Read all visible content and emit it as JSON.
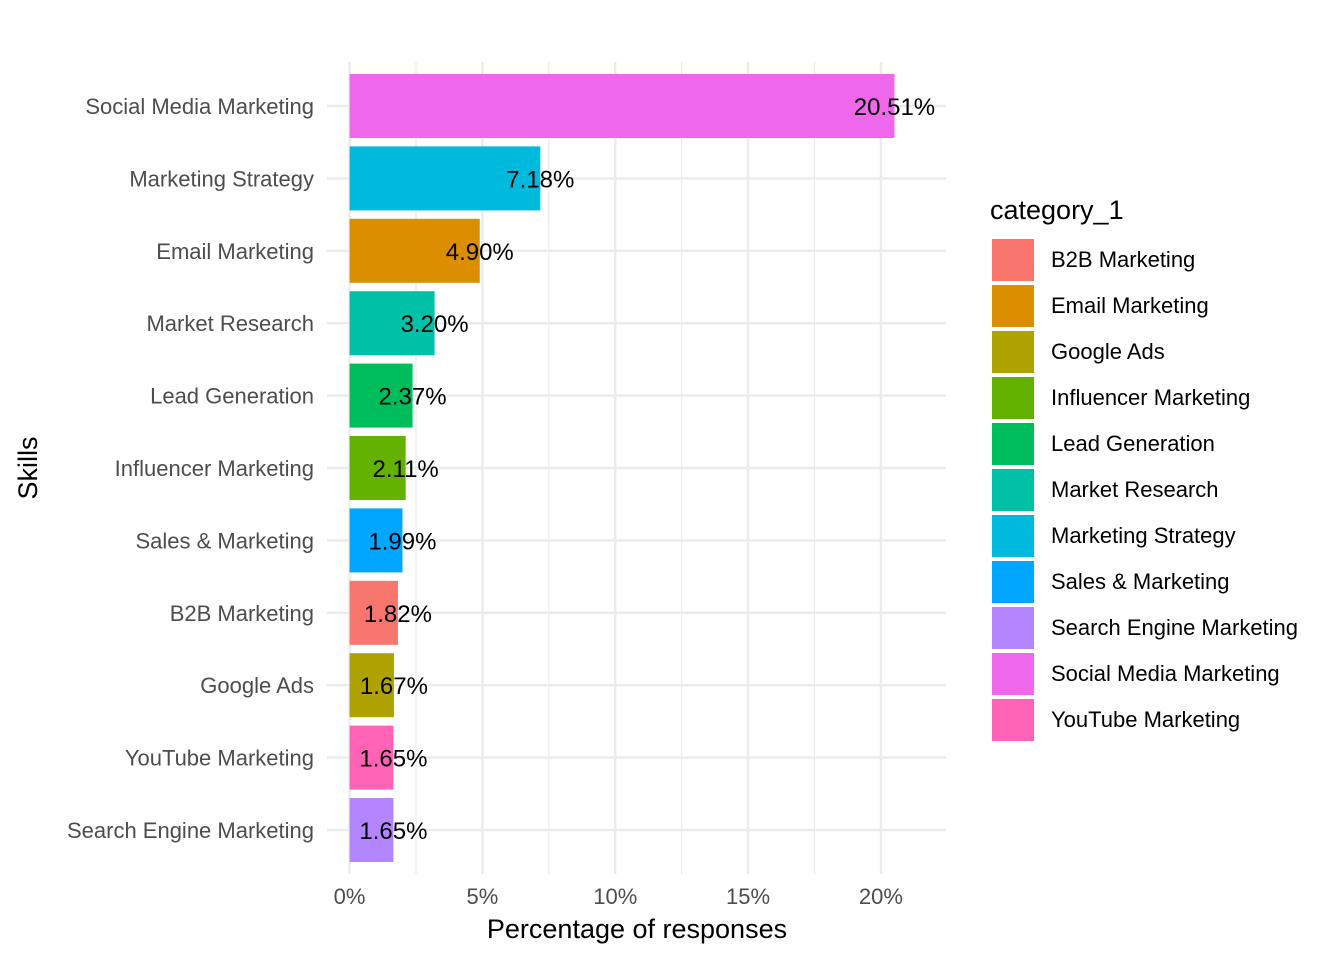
{
  "chart_data": {
    "type": "bar",
    "orientation": "horizontal",
    "xlabel": "Percentage of responses",
    "ylabel": "Skills",
    "xlim": [
      -0.0085,
      0.2245
    ],
    "x_ticks": [
      0,
      0.05,
      0.1,
      0.15,
      0.2
    ],
    "x_tick_labels": [
      "0%",
      "5%",
      "10%",
      "15%",
      "20%"
    ],
    "grid": true,
    "legend_placement": "right",
    "categories": [
      "Social Media Marketing",
      "Marketing Strategy",
      "Email Marketing",
      "Market Research",
      "Lead Generation",
      "Influencer Marketing",
      "Sales & Marketing",
      "B2B Marketing",
      "Google Ads",
      "YouTube Marketing",
      "Search Engine Marketing"
    ],
    "values": [
      0.2051,
      0.0718,
      0.049,
      0.032,
      0.0237,
      0.0211,
      0.0199,
      0.0182,
      0.0167,
      0.0165,
      0.0165
    ],
    "value_labels": [
      "20.51%",
      "7.18%",
      "4.90%",
      "3.20%",
      "2.37%",
      "2.11%",
      "1.99%",
      "1.82%",
      "1.67%",
      "1.65%",
      "1.65%"
    ],
    "legend": {
      "title": "category_1",
      "entries": [
        {
          "label": "B2B Marketing",
          "color": "#F8766D"
        },
        {
          "label": "Email Marketing",
          "color": "#DB8E00"
        },
        {
          "label": "Google Ads",
          "color": "#AEA200"
        },
        {
          "label": "Influencer Marketing",
          "color": "#64B200"
        },
        {
          "label": "Lead Generation",
          "color": "#00BD5C"
        },
        {
          "label": "Market Research",
          "color": "#00C1A7"
        },
        {
          "label": "Marketing Strategy",
          "color": "#00BADE"
        },
        {
          "label": "Sales & Marketing",
          "color": "#00A6FF"
        },
        {
          "label": "Search Engine Marketing",
          "color": "#B385FF"
        },
        {
          "label": "Social Media Marketing",
          "color": "#EF67EB"
        },
        {
          "label": "YouTube Marketing",
          "color": "#FF63B6"
        }
      ]
    }
  }
}
